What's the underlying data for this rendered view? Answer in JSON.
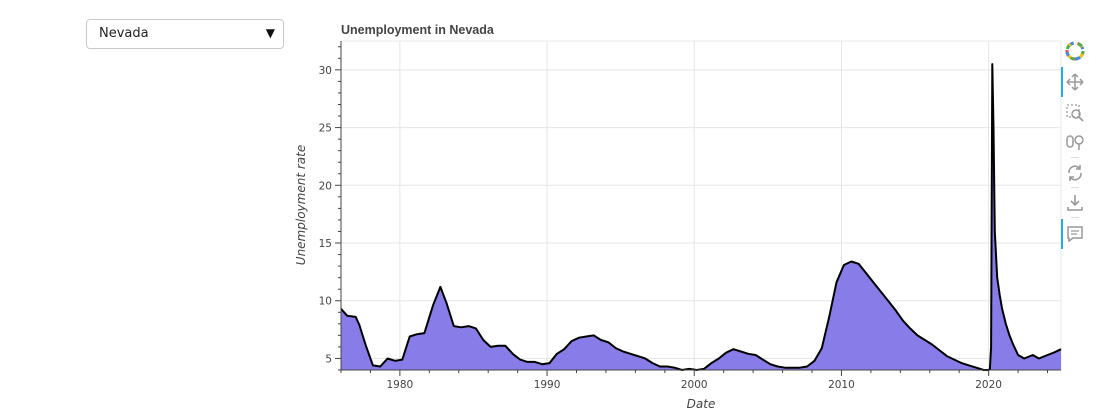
{
  "state_select": {
    "selected": "Nevada",
    "caret": "▼"
  },
  "toolbar": {
    "items": [
      "bokeh-logo-icon",
      "pan-icon",
      "box-zoom-icon",
      "wheel-zoom-icon",
      "reset-icon",
      "save-icon",
      "hover-icon"
    ]
  },
  "colors": {
    "area_fill": "#7b6fe6",
    "line": "#000000",
    "grid": "#e5e5e5",
    "toolbar_active": "#26aae1"
  },
  "chart_data": {
    "type": "area",
    "title": "Unemployment in Nevada",
    "xlabel": "Date",
    "ylabel": "Unemployment rate",
    "xlim": [
      "1976-01",
      "2024-12"
    ],
    "ylim": [
      4,
      32.5
    ],
    "x_ticks": [
      1980,
      1990,
      2000,
      2010,
      2020
    ],
    "y_ticks": [
      5,
      10,
      15,
      20,
      25,
      30
    ],
    "grid": true,
    "series": [
      {
        "x": [
          "1976-01",
          "1976-06",
          "1977-01",
          "1977-04",
          "1977-09",
          "1978-03",
          "1978-09",
          "1979-03",
          "1979-09",
          "1980-03",
          "1980-09",
          "1981-03",
          "1981-09",
          "1982-04",
          "1982-10",
          "1983-03",
          "1983-09",
          "1984-03",
          "1984-09",
          "1985-03",
          "1985-09",
          "1986-03",
          "1986-09",
          "1987-03",
          "1987-09",
          "1988-03",
          "1988-09",
          "1989-03",
          "1989-09",
          "1990-03",
          "1990-09",
          "1991-03",
          "1991-09",
          "1992-03",
          "1992-09",
          "1993-03",
          "1993-09",
          "1994-03",
          "1994-09",
          "1995-03",
          "1995-09",
          "1996-03",
          "1996-09",
          "1997-03",
          "1997-09",
          "1998-03",
          "1998-09",
          "1999-03",
          "1999-09",
          "2000-03",
          "2000-09",
          "2001-03",
          "2001-09",
          "2002-03",
          "2002-09",
          "2003-03",
          "2003-09",
          "2004-03",
          "2004-09",
          "2005-03",
          "2005-09",
          "2006-03",
          "2006-09",
          "2007-03",
          "2007-09",
          "2008-03",
          "2008-09",
          "2009-03",
          "2009-09",
          "2010-03",
          "2010-09",
          "2011-03",
          "2011-09",
          "2012-03",
          "2012-09",
          "2013-03",
          "2013-09",
          "2014-03",
          "2014-09",
          "2015-03",
          "2015-09",
          "2016-03",
          "2016-09",
          "2017-03",
          "2017-09",
          "2018-03",
          "2018-09",
          "2019-03",
          "2019-09",
          "2020-01",
          "2020-02",
          "2020-03",
          "2020-04",
          "2020-05",
          "2020-06",
          "2020-08",
          "2020-10",
          "2020-12",
          "2021-03",
          "2021-06",
          "2021-09",
          "2022-01",
          "2022-06",
          "2023-01",
          "2023-06",
          "2024-01",
          "2024-06",
          "2024-12"
        ],
        "y": [
          9.3,
          8.7,
          8.6,
          7.9,
          6.2,
          4.4,
          4.3,
          5.0,
          4.8,
          4.9,
          6.9,
          7.1,
          7.2,
          9.6,
          11.2,
          9.8,
          7.8,
          7.7,
          7.8,
          7.6,
          6.6,
          6.0,
          6.1,
          6.1,
          5.4,
          4.9,
          4.7,
          4.7,
          4.5,
          4.6,
          5.4,
          5.8,
          6.5,
          6.8,
          6.9,
          7.0,
          6.6,
          6.4,
          5.9,
          5.6,
          5.4,
          5.2,
          5.0,
          4.6,
          4.3,
          4.3,
          4.2,
          4.0,
          4.1,
          4.0,
          4.1,
          4.6,
          5.0,
          5.5,
          5.8,
          5.6,
          5.4,
          5.3,
          4.9,
          4.5,
          4.3,
          4.2,
          4.2,
          4.2,
          4.3,
          4.8,
          5.9,
          8.6,
          11.6,
          13.1,
          13.4,
          13.2,
          12.4,
          11.6,
          10.8,
          10.0,
          9.2,
          8.3,
          7.6,
          7.0,
          6.6,
          6.2,
          5.7,
          5.2,
          4.9,
          4.6,
          4.4,
          4.2,
          4.0,
          4.0,
          4.1,
          6.0,
          30.5,
          25.0,
          16.0,
          12.0,
          10.5,
          9.3,
          8.0,
          7.0,
          6.2,
          5.3,
          5.0,
          5.3,
          5.0,
          5.3,
          5.5,
          5.8
        ]
      }
    ]
  }
}
